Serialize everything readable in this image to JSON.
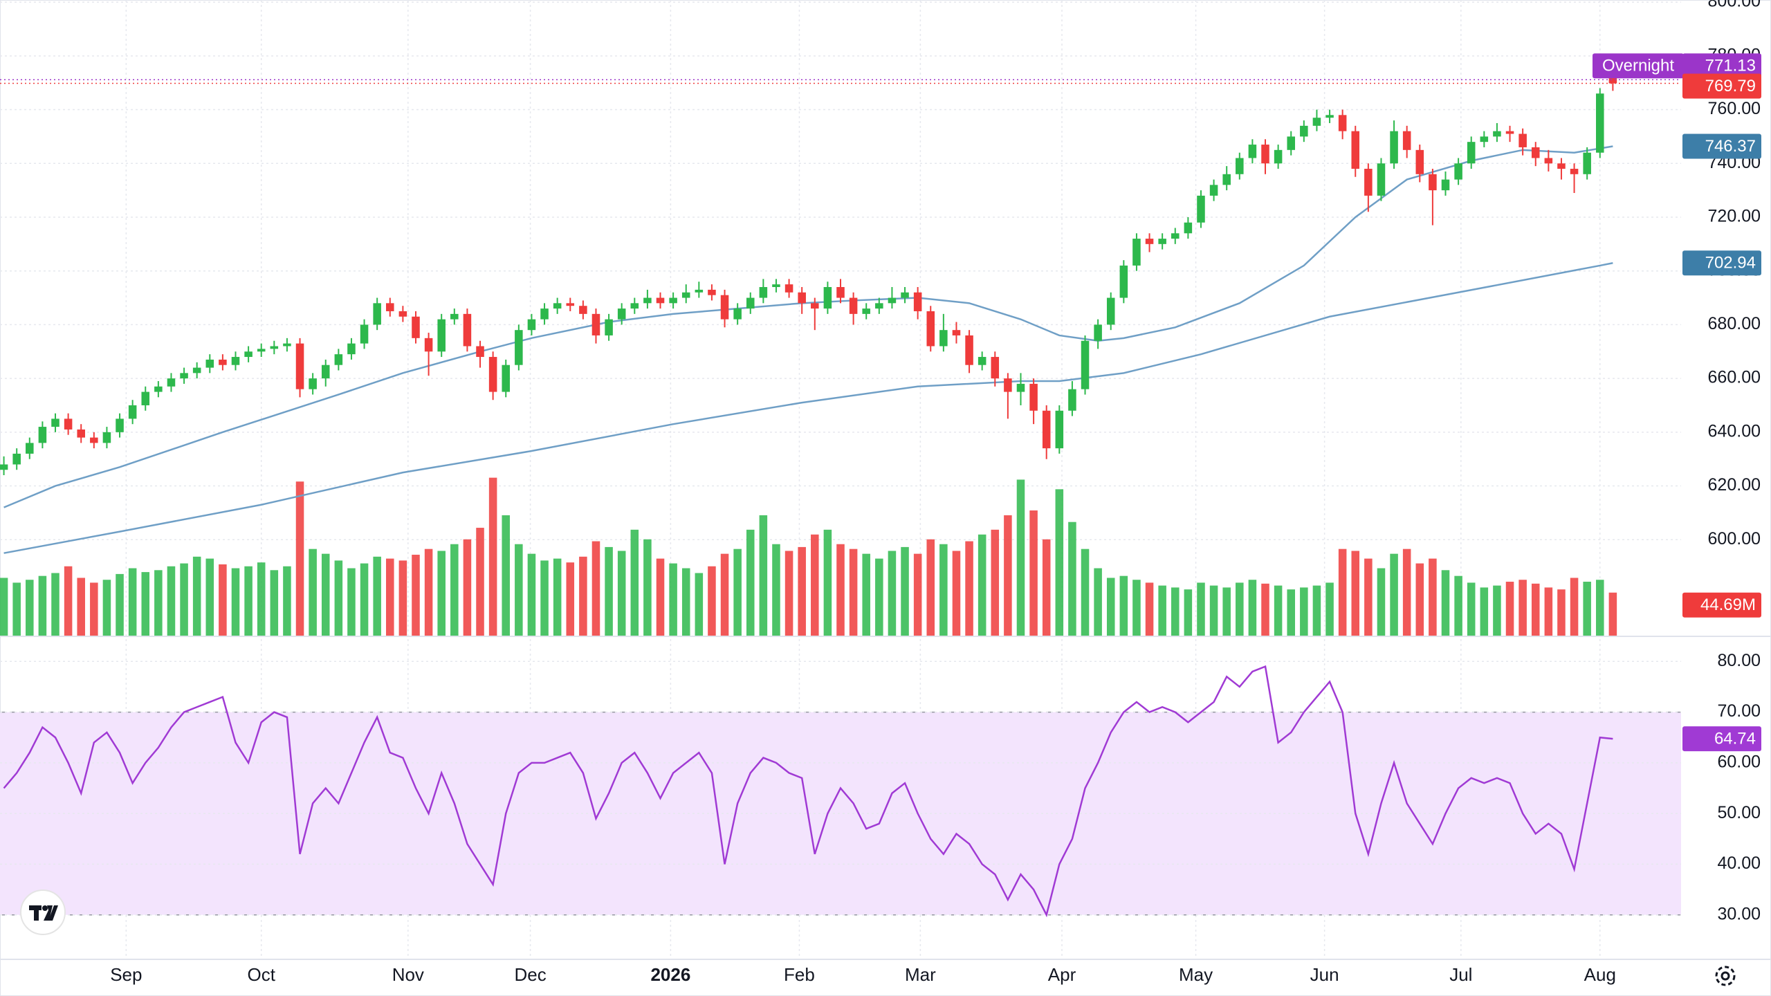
{
  "chart_data": [
    {
      "type": "candlestick",
      "open": [
        626,
        628,
        632,
        636,
        642,
        645,
        641,
        638,
        636,
        640,
        645,
        650,
        655,
        657,
        660,
        662,
        664,
        667,
        665,
        668,
        670,
        671,
        672,
        673,
        656,
        660,
        665,
        669,
        673,
        680,
        688,
        685,
        683,
        675,
        670,
        682,
        684,
        672,
        668,
        655,
        665,
        678,
        682,
        686,
        688,
        687,
        684,
        676,
        682,
        686,
        688,
        690,
        688,
        690,
        692,
        693,
        691,
        682,
        686,
        690,
        694,
        695,
        692,
        688,
        686,
        694,
        690,
        684,
        686,
        688,
        690,
        692,
        685,
        672,
        678,
        676,
        665,
        668,
        660,
        655,
        658,
        648,
        634,
        648,
        656,
        674,
        680,
        690,
        702,
        712,
        710,
        712,
        714,
        718,
        728,
        732,
        736,
        742,
        747,
        740,
        745,
        750,
        754,
        757,
        758,
        752,
        738,
        728,
        740,
        752,
        745,
        736,
        730,
        734,
        740,
        748,
        750,
        752,
        751,
        746,
        742,
        740,
        738,
        736,
        744,
        772
      ],
      "high": [
        631,
        634,
        638,
        644,
        647,
        647,
        643,
        640,
        642,
        647,
        652,
        657,
        659,
        662,
        664,
        666,
        669,
        669,
        670,
        672,
        673,
        674,
        675,
        675,
        662,
        667,
        671,
        675,
        682,
        690,
        690,
        687,
        685,
        677,
        684,
        686,
        686,
        674,
        670,
        667,
        680,
        684,
        688,
        690,
        690,
        689,
        686,
        684,
        688,
        690,
        693,
        692,
        692,
        695,
        696,
        695,
        693,
        688,
        692,
        697,
        697,
        697,
        694,
        690,
        696,
        697,
        692,
        688,
        690,
        694,
        694,
        694,
        687,
        684,
        681,
        678,
        670,
        670,
        662,
        662,
        660,
        650,
        650,
        659,
        676,
        682,
        692,
        704,
        714,
        714,
        714,
        716,
        720,
        730,
        734,
        739,
        744,
        749,
        749,
        747,
        752,
        756,
        760,
        760,
        760,
        754,
        740,
        742,
        756,
        754,
        747,
        738,
        737,
        742,
        750,
        752,
        755,
        754,
        753,
        748,
        745,
        742,
        740,
        746,
        768,
        773
      ],
      "low": [
        624,
        626,
        630,
        634,
        640,
        639,
        636,
        634,
        634,
        638,
        643,
        648,
        653,
        655,
        658,
        660,
        662,
        663,
        663,
        666,
        668,
        669,
        670,
        653,
        654,
        657,
        663,
        667,
        671,
        678,
        683,
        681,
        673,
        661,
        668,
        680,
        670,
        664,
        652,
        653,
        663,
        676,
        680,
        684,
        685,
        682,
        673,
        674,
        680,
        684,
        686,
        686,
        686,
        688,
        690,
        689,
        679,
        680,
        684,
        688,
        692,
        690,
        684,
        678,
        684,
        688,
        680,
        682,
        684,
        686,
        688,
        682,
        670,
        670,
        673,
        662,
        663,
        657,
        645,
        650,
        643,
        630,
        632,
        646,
        654,
        671,
        678,
        688,
        700,
        707,
        708,
        710,
        712,
        716,
        726,
        730,
        734,
        740,
        736,
        738,
        743,
        748,
        752,
        755,
        749,
        735,
        722,
        726,
        738,
        742,
        733,
        717,
        728,
        732,
        738,
        746,
        748,
        748,
        743,
        739,
        737,
        734,
        729,
        734,
        742,
        767
      ],
      "close": [
        628,
        632,
        636,
        642,
        645,
        641,
        638,
        636,
        640,
        645,
        650,
        655,
        657,
        660,
        662,
        664,
        667,
        665,
        668,
        670,
        671,
        672,
        673,
        656,
        660,
        665,
        669,
        673,
        680,
        688,
        685,
        683,
        675,
        670,
        682,
        684,
        672,
        668,
        655,
        665,
        678,
        682,
        686,
        688,
        687,
        684,
        676,
        682,
        686,
        688,
        690,
        688,
        690,
        692,
        693,
        691,
        682,
        686,
        690,
        694,
        695,
        692,
        688,
        686,
        694,
        690,
        684,
        686,
        688,
        690,
        692,
        685,
        672,
        678,
        676,
        665,
        668,
        660,
        655,
        658,
        648,
        634,
        648,
        656,
        674,
        680,
        690,
        702,
        712,
        710,
        712,
        714,
        718,
        728,
        732,
        736,
        742,
        747,
        740,
        745,
        750,
        754,
        757,
        758,
        752,
        738,
        728,
        740,
        752,
        745,
        736,
        730,
        734,
        740,
        748,
        750,
        752,
        751,
        746,
        742,
        740,
        738,
        736,
        744,
        766,
        769.79
      ],
      "up_color": "#2db84c",
      "down_color": "#ef3b3b",
      "xlim": [
        -0.3,
        130.3
      ],
      "xticks": [
        {
          "value": 9.5,
          "label": "Sep"
        },
        {
          "value": 20,
          "label": "Oct"
        },
        {
          "value": 31.4,
          "label": "Nov"
        },
        {
          "value": 40.9,
          "label": "Dec"
        },
        {
          "value": 51.8,
          "label": "2026",
          "major": true
        },
        {
          "value": 61.8,
          "label": "Feb"
        },
        {
          "value": 71.2,
          "label": "Mar"
        },
        {
          "value": 82.2,
          "label": "Apr"
        },
        {
          "value": 92.6,
          "label": "May"
        },
        {
          "value": 102.6,
          "label": "Jun"
        },
        {
          "value": 113.2,
          "label": "Jul"
        },
        {
          "value": 124,
          "label": "Aug"
        }
      ],
      "ylim": [
        564.3,
        800.8
      ],
      "yticks": [
        {
          "value": 600,
          "label": "600.00"
        },
        {
          "value": 620,
          "label": "620.00"
        },
        {
          "value": 640,
          "label": "640.00"
        },
        {
          "value": 660,
          "label": "660.00"
        },
        {
          "value": 680,
          "label": "680.00"
        },
        {
          "value": 700,
          "label": "700.00"
        },
        {
          "value": 720,
          "label": "720.00"
        },
        {
          "value": 740,
          "label": "740.00"
        },
        {
          "value": 760,
          "label": "760.00"
        },
        {
          "value": 780,
          "label": "780.00"
        },
        {
          "value": 800,
          "label": "800.00"
        }
      ],
      "grid": true,
      "overlays": [
        {
          "color": "#6f9fc6",
          "tag_color": "#3d7ea8",
          "x": [
            0,
            4,
            9,
            17,
            26,
            31,
            37,
            41,
            47,
            52,
            57,
            62,
            66,
            71,
            75,
            79,
            82,
            85,
            87,
            91,
            96,
            101,
            105,
            109,
            114,
            118,
            122,
            125
          ],
          "values": [
            612,
            620,
            627,
            640,
            654,
            662,
            670,
            675,
            681,
            684,
            686,
            688,
            689,
            690,
            688,
            682,
            676,
            674,
            675,
            679,
            688,
            702,
            720,
            734,
            741,
            745,
            744,
            746.37
          ]
        },
        {
          "color": "#6f9fc6",
          "tag_color": "#3d7ea8",
          "x": [
            0,
            9,
            20,
            31,
            41,
            52,
            62,
            71,
            79,
            82,
            87,
            93,
            103,
            113,
            124,
            125
          ],
          "values": [
            595,
            603,
            613,
            625,
            633,
            643,
            651,
            657,
            659,
            659,
            662,
            669,
            683,
            692,
            702,
            702.94
          ]
        }
      ],
      "overnight": {
        "label": "Overnight",
        "value": 771.13,
        "color": "#9b35c9"
      }
    },
    {
      "type": "bar",
      "values": [
        60,
        55,
        58,
        62,
        65,
        72,
        60,
        55,
        58,
        64,
        70,
        66,
        68,
        72,
        75,
        82,
        80,
        74,
        70,
        72,
        76,
        68,
        72,
        160,
        90,
        85,
        78,
        70,
        75,
        82,
        80,
        78,
        84,
        90,
        88,
        95,
        100,
        112,
        164,
        125,
        95,
        85,
        78,
        80,
        76,
        82,
        98,
        92,
        88,
        110,
        100,
        80,
        75,
        70,
        65,
        72,
        85,
        90,
        110,
        125,
        95,
        88,
        92,
        105,
        110,
        95,
        90,
        85,
        80,
        88,
        92,
        85,
        100,
        95,
        88,
        98,
        105,
        110,
        125,
        162,
        130,
        100,
        152,
        118,
        90,
        70,
        60,
        62,
        58,
        55,
        52,
        50,
        48,
        55,
        52,
        50,
        55,
        58,
        54,
        52,
        48,
        50,
        52,
        55,
        90,
        88,
        80,
        70,
        85,
        90,
        75,
        80,
        68,
        62,
        55,
        50,
        52,
        56,
        58,
        54,
        50,
        48,
        60,
        56,
        58,
        44.69
      ],
      "value_labels": [
        null,
        null,
        null,
        null,
        null,
        null,
        null,
        null,
        null,
        null,
        null,
        null,
        null,
        null,
        null,
        null,
        null,
        null,
        null,
        null,
        null,
        null,
        null,
        null,
        null,
        null,
        null,
        null,
        null,
        null,
        null,
        null,
        null,
        null,
        null,
        null,
        null,
        null,
        null,
        null,
        null,
        null,
        null,
        null,
        null,
        null,
        null,
        null,
        null,
        null,
        null,
        null,
        null,
        null,
        null,
        null,
        null,
        null,
        null,
        null,
        null,
        null,
        null,
        null,
        null,
        null,
        null,
        null,
        null,
        null,
        null,
        null,
        null,
        null,
        null,
        null,
        null,
        null,
        null,
        null,
        null,
        null,
        null,
        null,
        null,
        null,
        null,
        null,
        null,
        null,
        null,
        null,
        null,
        null,
        null,
        null,
        null,
        null,
        null,
        null,
        null,
        null,
        null,
        null,
        null,
        null,
        null,
        null,
        null,
        null,
        null,
        null,
        null,
        null,
        null,
        null,
        null,
        null,
        null,
        null,
        null,
        null,
        null,
        null,
        null,
        "44.69M"
      ],
      "ylim": [
        0,
        660
      ]
    },
    {
      "type": "line",
      "values": [
        55,
        58,
        62,
        67,
        65,
        60,
        54,
        64,
        66,
        62,
        56,
        60,
        63,
        67,
        70,
        71,
        72,
        73,
        64,
        60,
        68,
        70,
        69,
        42,
        52,
        55,
        52,
        58,
        64,
        69,
        62,
        61,
        55,
        50,
        58,
        52,
        44,
        40,
        36,
        50,
        58,
        60,
        60,
        61,
        62,
        58,
        49,
        54,
        60,
        62,
        58,
        53,
        58,
        60,
        62,
        58,
        40,
        52,
        58,
        61,
        60,
        58,
        57,
        42,
        50,
        55,
        52,
        47,
        48,
        54,
        56,
        50,
        45,
        42,
        46,
        44,
        40,
        38,
        33,
        38,
        35,
        30,
        40,
        45,
        55,
        60,
        66,
        70,
        72,
        70,
        71,
        70,
        68,
        70,
        72,
        77,
        75,
        78,
        79,
        64,
        66,
        70,
        73,
        76,
        70,
        50,
        42,
        52,
        60,
        52,
        48,
        44,
        50,
        55,
        57,
        56,
        57,
        56,
        50,
        46,
        48,
        46,
        39,
        52,
        65,
        64.74
      ],
      "color": "#a03ad4",
      "band": [
        30,
        70
      ],
      "band_color": "#f3e4fd",
      "ylim": [
        21.5,
        84
      ],
      "yticks": [
        {
          "value": 30,
          "label": "30.00"
        },
        {
          "value": 40,
          "label": "40.00"
        },
        {
          "value": 50,
          "label": "50.00"
        },
        {
          "value": 60,
          "label": "60.00"
        },
        {
          "value": 70,
          "label": "70.00"
        },
        {
          "value": 80,
          "label": "80.00"
        }
      ]
    }
  ]
}
